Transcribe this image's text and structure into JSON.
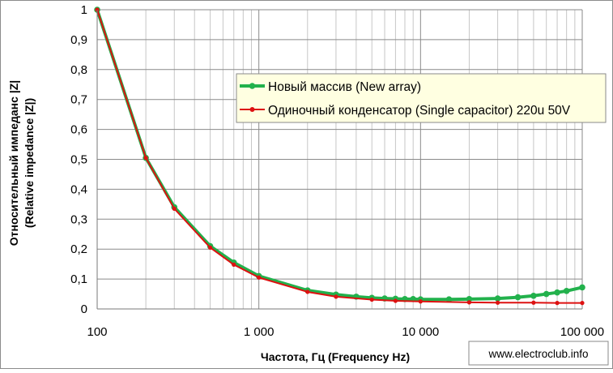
{
  "chart_data": {
    "type": "line",
    "xscale": "log",
    "xlim": [
      100,
      100000
    ],
    "ylim": [
      0,
      1
    ],
    "grid": true,
    "legend_position": "top-right",
    "xlabel": "Частота, Гц (Frequency Hz)",
    "ylabel_line1": "Относительный импеданс |Z|",
    "ylabel_line2": "(Relative impedance |Z|)",
    "x_ticks": [
      {
        "value": 100,
        "label": "100"
      },
      {
        "value": 1000,
        "label": "1 000"
      },
      {
        "value": 10000,
        "label": "10 000"
      },
      {
        "value": 100000,
        "label": "100 000"
      }
    ],
    "y_ticks": [
      {
        "value": 0,
        "label": "0"
      },
      {
        "value": 0.1,
        "label": "0,1"
      },
      {
        "value": 0.2,
        "label": "0,2"
      },
      {
        "value": 0.3,
        "label": "0,3"
      },
      {
        "value": 0.4,
        "label": "0,4"
      },
      {
        "value": 0.5,
        "label": "0,5"
      },
      {
        "value": 0.6,
        "label": "0,6"
      },
      {
        "value": 0.7,
        "label": "0,7"
      },
      {
        "value": 0.8,
        "label": "0,8"
      },
      {
        "value": 0.9,
        "label": "0,9"
      },
      {
        "value": 1,
        "label": "1"
      }
    ],
    "series": [
      {
        "name": "Новый массив (New array)",
        "color": "#22b14c",
        "x": [
          100,
          200,
          300,
          500,
          700,
          1000,
          2000,
          3000,
          4000,
          5000,
          6000,
          7000,
          8000,
          9000,
          10000,
          15000,
          20000,
          30000,
          40000,
          50000,
          60000,
          70000,
          80000,
          100000
        ],
        "y": [
          1.0,
          0.505,
          0.34,
          0.21,
          0.155,
          0.11,
          0.062,
          0.048,
          0.041,
          0.037,
          0.035,
          0.034,
          0.033,
          0.033,
          0.032,
          0.032,
          0.033,
          0.035,
          0.039,
          0.044,
          0.05,
          0.055,
          0.06,
          0.072
        ]
      },
      {
        "name": "Одиночный конденсатор (Single capacitor) 220u 50V",
        "color": "#dd1111",
        "x": [
          100,
          200,
          300,
          500,
          700,
          1000,
          2000,
          3000,
          5000,
          7000,
          10000,
          20000,
          30000,
          50000,
          70000,
          100000
        ],
        "y": [
          1.0,
          0.505,
          0.335,
          0.205,
          0.148,
          0.105,
          0.057,
          0.041,
          0.031,
          0.027,
          0.025,
          0.022,
          0.021,
          0.021,
          0.02,
          0.02
        ]
      }
    ]
  },
  "watermark": "www.electroclub.info"
}
